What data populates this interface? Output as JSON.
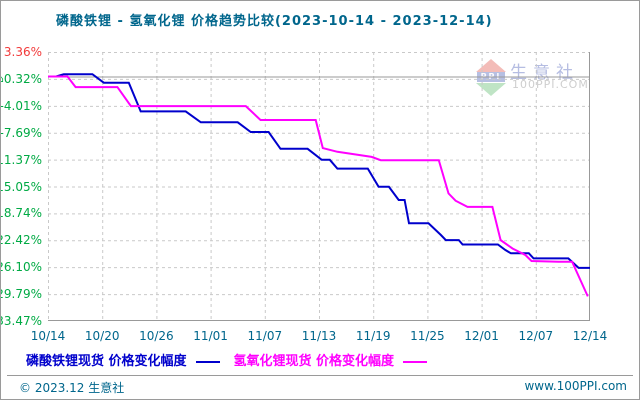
{
  "title": "磷酸铁锂 - 氢氧化锂 价格趋势比较(2023-10-14 - 2023-12-14)",
  "watermark": {
    "logo_text": "PPI",
    "brand": "生意社",
    "site": "100PPI.COM"
  },
  "icons": {
    "y_axis_marker_icon": "⌂"
  },
  "legend": [
    {
      "label": "磷酸铁锂现货 价格变化幅度",
      "color": "#0000cc"
    },
    {
      "label": "氢氧化锂现货 价格变化幅度",
      "color": "#ff00ff"
    }
  ],
  "footer": {
    "left": "© 2023.12 生意社",
    "right": "www.100PPI.com"
  },
  "colors": {
    "title_text": "#00668c",
    "axis_label_green": "#00aa44",
    "axis_label_red": "#f23a3a",
    "grid_dashed": "#c9c9c9",
    "axis_solid": "#999999",
    "zero_line": "#999999",
    "series_blue": "#0000cc",
    "series_magenta": "#ff00ff"
  },
  "chart_data": {
    "type": "line",
    "title": "磷酸铁锂 - 氢氧化锂 价格趋势比较(2023-10-14 - 2023-12-14)",
    "xlabel": "",
    "ylabel": "价格变化幅度 (%)",
    "x_tick_labels": [
      "10/14",
      "10/20",
      "10/26",
      "11/01",
      "11/07",
      "11/13",
      "11/19",
      "11/25",
      "12/01",
      "12/07",
      "12/14"
    ],
    "y_tick_labels": [
      "3.36%",
      "0.32%",
      "-4.01%",
      "-7.69%",
      "-11.37%",
      "-15.05%",
      "-18.74%",
      "-22.42%",
      "-26.10%",
      "-29.79%",
      "-33.47%"
    ],
    "ylim": [
      -33.47,
      3.36
    ],
    "xlim_units": [
      0,
      10
    ],
    "grid": true,
    "zero_line_value": 0,
    "gridline_values": [
      -0.32,
      -4.01,
      -7.69,
      -11.37,
      -15.05,
      -18.74,
      -22.42,
      -26.1,
      -29.79
    ],
    "legend_position": "bottom",
    "series": [
      {
        "name": "磷酸铁锂现货 价格变化幅度",
        "color": "#0000cc",
        "points": [
          [
            0,
            0
          ],
          [
            0.15,
            0
          ],
          [
            0.29,
            0.32
          ],
          [
            0.82,
            0.32
          ],
          [
            1.03,
            -0.85
          ],
          [
            1.49,
            -0.85
          ],
          [
            1.71,
            -4.77
          ],
          [
            2.54,
            -4.77
          ],
          [
            2.82,
            -6.27
          ],
          [
            3.5,
            -6.27
          ],
          [
            3.74,
            -7.6
          ],
          [
            4.07,
            -7.6
          ],
          [
            4.29,
            -9.9
          ],
          [
            4.79,
            -9.9
          ],
          [
            5.05,
            -11.4
          ],
          [
            5.2,
            -11.4
          ],
          [
            5.34,
            -12.6
          ],
          [
            5.9,
            -12.6
          ],
          [
            6.1,
            -15.1
          ],
          [
            6.29,
            -15.1
          ],
          [
            6.47,
            -16.9
          ],
          [
            6.58,
            -16.9
          ],
          [
            6.66,
            -20.1
          ],
          [
            7.02,
            -20.1
          ],
          [
            7.25,
            -21.7
          ],
          [
            7.34,
            -22.4
          ],
          [
            7.58,
            -22.4
          ],
          [
            7.65,
            -23.0
          ],
          [
            8.3,
            -23.0
          ],
          [
            8.44,
            -23.75
          ],
          [
            8.54,
            -24.2
          ],
          [
            8.87,
            -24.2
          ],
          [
            8.96,
            -24.9
          ],
          [
            9.6,
            -24.9
          ],
          [
            9.79,
            -26.2
          ],
          [
            10,
            -26.2
          ]
        ]
      },
      {
        "name": "氢氧化锂现货 价格变化幅度",
        "color": "#ff00ff",
        "points": [
          [
            0,
            0
          ],
          [
            0.36,
            0
          ],
          [
            0.51,
            -1.45
          ],
          [
            1.28,
            -1.45
          ],
          [
            1.53,
            -4.05
          ],
          [
            3.65,
            -4.05
          ],
          [
            3.92,
            -5.95
          ],
          [
            4.94,
            -5.95
          ],
          [
            5.07,
            -9.8
          ],
          [
            5.34,
            -10.3
          ],
          [
            5.71,
            -10.7
          ],
          [
            5.97,
            -11.0
          ],
          [
            6.14,
            -11.45
          ],
          [
            7.21,
            -11.45
          ],
          [
            7.39,
            -16.0
          ],
          [
            7.52,
            -17.0
          ],
          [
            7.74,
            -17.85
          ],
          [
            8.2,
            -17.85
          ],
          [
            8.35,
            -22.4
          ],
          [
            8.57,
            -23.55
          ],
          [
            8.81,
            -24.45
          ],
          [
            8.92,
            -25.25
          ],
          [
            9.42,
            -25.35
          ],
          [
            9.67,
            -25.35
          ],
          [
            9.96,
            -30.1
          ]
        ]
      }
    ]
  }
}
